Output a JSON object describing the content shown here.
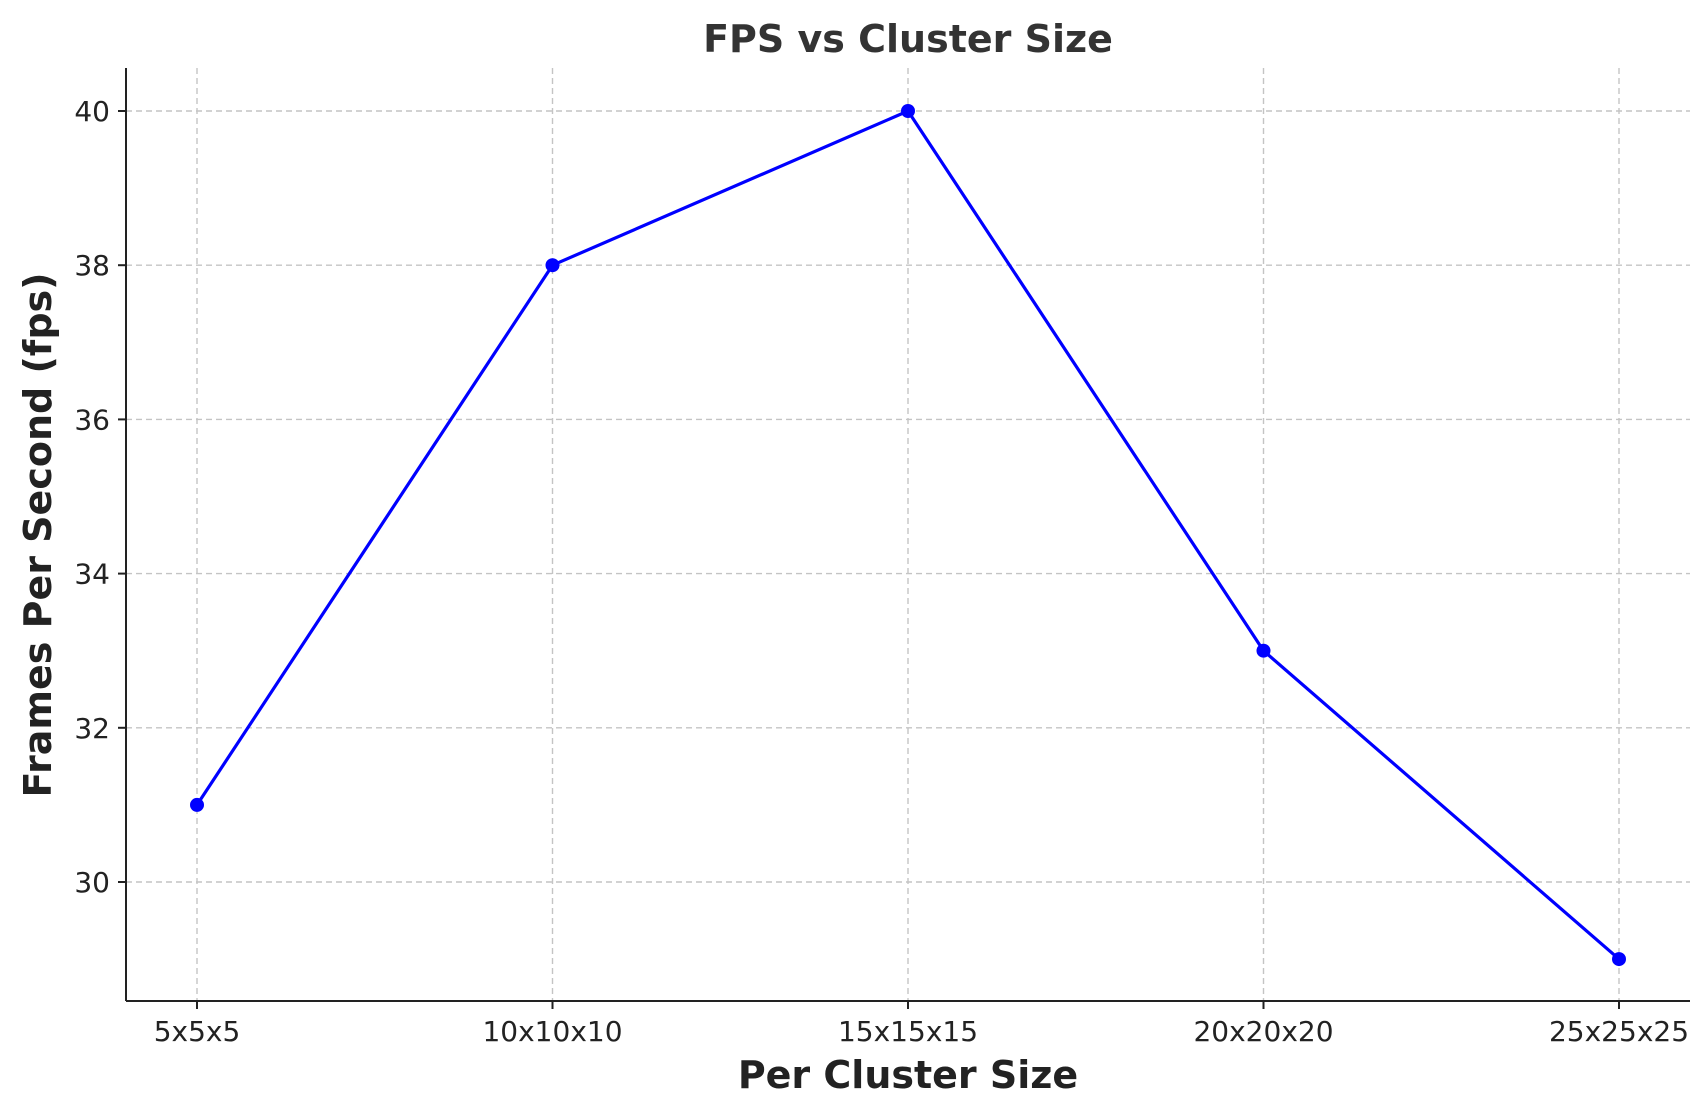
{
  "chart_data": {
    "type": "line",
    "title": "FPS vs Cluster Size",
    "xlabel": "Per Cluster Size",
    "ylabel": "Frames Per Second (fps)",
    "categories": [
      "5x5x5",
      "10x10x10",
      "15x15x15",
      "20x20x20",
      "25x25x25"
    ],
    "series": [
      {
        "values": [
          31,
          38,
          40,
          33,
          29
        ],
        "color": "#0000ff",
        "marker": "circle"
      }
    ],
    "ylim": [
      28.5,
      40.55
    ],
    "yticks": [
      30,
      32,
      34,
      36,
      38,
      40
    ],
    "grid": true
  }
}
